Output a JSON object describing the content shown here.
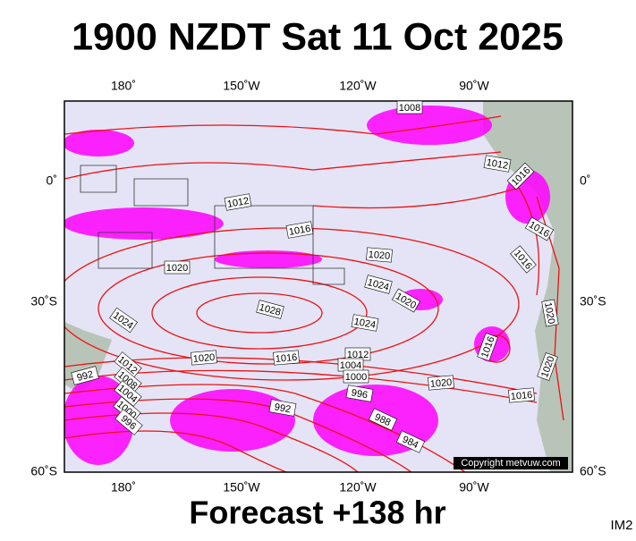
{
  "header": {
    "title": "1900 NZDT Sat 11 Oct 2025"
  },
  "axes": {
    "top": [
      "180˚",
      "150˚W",
      "120˚W",
      "90˚W"
    ],
    "bottom": [
      "180˚",
      "150˚W",
      "120˚W",
      "90˚W"
    ],
    "left": [
      "0˚",
      "30˚S",
      "60˚S"
    ],
    "right": [
      "0˚",
      "30˚S",
      "60˚S"
    ]
  },
  "isobars": [
    "1008",
    "1012",
    "1016",
    "1012",
    "1016",
    "1020",
    "1020",
    "1016",
    "1016",
    "1024",
    "1020",
    "1028",
    "1024",
    "1024",
    "1016",
    "1020",
    "1020",
    "1016",
    "1012",
    "1004",
    "1000",
    "996",
    "1020",
    "1016",
    "1020",
    "992",
    "1012",
    "1008",
    "1004",
    "1000",
    "996",
    "992",
    "988",
    "984"
  ],
  "copyright": "Copyright metvuw.com",
  "footer": {
    "forecast": "Forecast +138 hr",
    "id": "IM2"
  }
}
